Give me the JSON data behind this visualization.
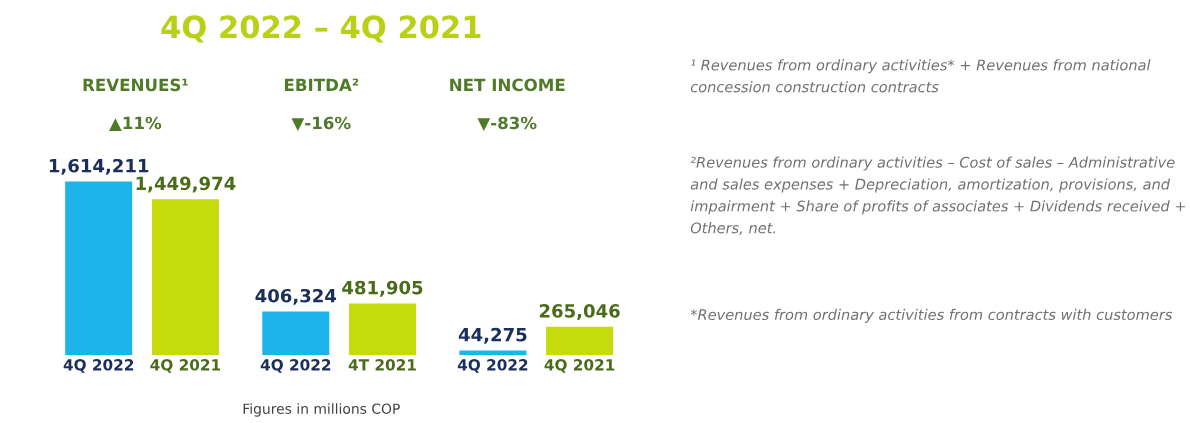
{
  "chart_data": {
    "type": "bar",
    "title": "4Q 2022 – 4Q 2021",
    "categories": [
      "REVENUES¹",
      "EBITDA²",
      "NET INCOME"
    ],
    "series": [
      {
        "color": "#1cb4ea",
        "values": [
          1614211,
          406324,
          44275
        ],
        "value_labels": [
          "1,614,211",
          "406,324",
          "44,275"
        ]
      },
      {
        "color": "#c5db0c",
        "values": [
          1449974,
          481905,
          265046
        ],
        "value_labels": [
          "1,449,974",
          "481,905",
          "265,046"
        ]
      }
    ],
    "annotations": [
      "▲11%",
      "▼-16%",
      "▼-83%",
      "4Q 2022",
      "4Q 2021",
      "4Q 2022",
      "4T 2021",
      "4Q 2022",
      "4Q 2021",
      "¹ Revenues from ordinary activities* + Revenues from national concession construction contracts",
      "²Revenues from ordinary activities – Cost of sales – Administrative and sales expenses + Depreciation, amortization, provisions, and impairment + Share of profits of associates + Dividends received + Others, net.",
      "*Revenues from ordinary activities from contracts with customers",
      "Figures in millions COP"
    ]
  }
}
